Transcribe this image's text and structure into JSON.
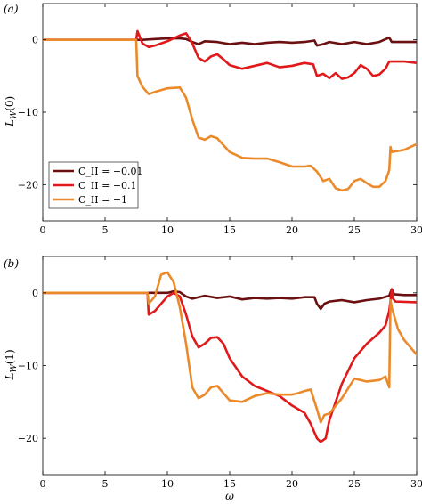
{
  "colors": {
    "c001": "#6b0f10",
    "c01": "#e0191b",
    "c1": "#eb8a2b"
  },
  "chart_data": [
    {
      "type": "line",
      "panel_label": "(a)",
      "xlabel": "",
      "ylabel": "L_W(0)",
      "ylabel_main": "L",
      "ylabel_sub": "W",
      "ylabel_arg": "(0)",
      "xlim": [
        0,
        30
      ],
      "ylim": [
        -25,
        5
      ],
      "xticks": [
        0,
        5,
        10,
        15,
        20,
        25,
        30
      ],
      "yticks": [
        0,
        -10,
        -20
      ],
      "xtick_labels": [
        "0",
        "5",
        "10",
        "15",
        "20",
        "25",
        "30"
      ],
      "ytick_labels": [
        "0",
        "−10",
        "−20"
      ],
      "legend_position": "bottom-left",
      "legend": [
        "C_II = −0.01",
        "C_II = −0.1",
        "C_II = −1"
      ],
      "series": [
        {
          "name": "C_II = −0.01",
          "color": "#6b0f10",
          "points": [
            [
              0,
              0
            ],
            [
              7.5,
              0
            ],
            [
              8,
              0
            ],
            [
              9,
              0.1
            ],
            [
              10,
              0.2
            ],
            [
              11,
              0.2
            ],
            [
              11.5,
              0.1
            ],
            [
              12,
              -0.3
            ],
            [
              12.5,
              -0.6
            ],
            [
              13,
              -0.2
            ],
            [
              14,
              -0.3
            ],
            [
              15,
              -0.6
            ],
            [
              16,
              -0.4
            ],
            [
              17,
              -0.6
            ],
            [
              18,
              -0.4
            ],
            [
              19,
              -0.3
            ],
            [
              20,
              -0.4
            ],
            [
              21,
              -0.3
            ],
            [
              21.8,
              -0.1
            ],
            [
              22,
              -0.8
            ],
            [
              22.5,
              -0.6
            ],
            [
              23,
              -0.3
            ],
            [
              24,
              -0.6
            ],
            [
              25,
              -0.3
            ],
            [
              26,
              -0.6
            ],
            [
              27,
              -0.3
            ],
            [
              27.8,
              0.3
            ],
            [
              28,
              -0.3
            ],
            [
              29,
              -0.3
            ],
            [
              30,
              -0.3
            ]
          ]
        },
        {
          "name": "C_II = −0.1",
          "color": "#e0191b",
          "points": [
            [
              0,
              0
            ],
            [
              7.5,
              0
            ],
            [
              7.6,
              1.2
            ],
            [
              8,
              -0.5
            ],
            [
              8.5,
              -1
            ],
            [
              9,
              -0.8
            ],
            [
              10,
              -0.2
            ],
            [
              11,
              0.6
            ],
            [
              11.5,
              0.9
            ],
            [
              12,
              -0.5
            ],
            [
              12.5,
              -2.5
            ],
            [
              13,
              -3
            ],
            [
              13.5,
              -2.3
            ],
            [
              14,
              -2
            ],
            [
              14.5,
              -2.7
            ],
            [
              15,
              -3.5
            ],
            [
              16,
              -4
            ],
            [
              17,
              -3.6
            ],
            [
              18,
              -3.2
            ],
            [
              19,
              -3.8
            ],
            [
              20,
              -3.6
            ],
            [
              21,
              -3.2
            ],
            [
              21.7,
              -3.4
            ],
            [
              22,
              -5
            ],
            [
              22.5,
              -4.7
            ],
            [
              23,
              -5.3
            ],
            [
              23.5,
              -4.6
            ],
            [
              24,
              -5.4
            ],
            [
              24.5,
              -5.2
            ],
            [
              25,
              -4.6
            ],
            [
              25.5,
              -3.5
            ],
            [
              26,
              -4
            ],
            [
              26.5,
              -5
            ],
            [
              27,
              -4.8
            ],
            [
              27.5,
              -4
            ],
            [
              27.8,
              -3
            ],
            [
              28,
              -3
            ],
            [
              29,
              -3
            ],
            [
              30,
              -3.2
            ]
          ]
        },
        {
          "name": "C_II = −1",
          "color": "#eb8a2b",
          "points": [
            [
              0,
              0
            ],
            [
              7.5,
              0
            ],
            [
              7.6,
              -5
            ],
            [
              8,
              -6.5
            ],
            [
              8.5,
              -7.5
            ],
            [
              9,
              -7.2
            ],
            [
              10,
              -6.7
            ],
            [
              11,
              -6.6
            ],
            [
              11.5,
              -8
            ],
            [
              12,
              -11
            ],
            [
              12.5,
              -13.5
            ],
            [
              13,
              -13.8
            ],
            [
              13.5,
              -13.3
            ],
            [
              14,
              -13.6
            ],
            [
              15,
              -15.5
            ],
            [
              16,
              -16.3
            ],
            [
              17,
              -16.4
            ],
            [
              18,
              -16.4
            ],
            [
              19,
              -16.9
            ],
            [
              20,
              -17.5
            ],
            [
              21,
              -17.5
            ],
            [
              21.5,
              -17.4
            ],
            [
              22,
              -18.2
            ],
            [
              22.5,
              -19.5
            ],
            [
              23,
              -19.2
            ],
            [
              23.5,
              -20.5
            ],
            [
              24,
              -20.8
            ],
            [
              24.5,
              -20.6
            ],
            [
              25,
              -19.5
            ],
            [
              25.5,
              -19.2
            ],
            [
              26,
              -19.8
            ],
            [
              26.5,
              -20.3
            ],
            [
              27,
              -20.3
            ],
            [
              27.5,
              -19.5
            ],
            [
              27.8,
              -18
            ],
            [
              27.9,
              -14.8
            ],
            [
              28,
              -15.5
            ],
            [
              29,
              -15.2
            ],
            [
              30,
              -14.4
            ]
          ]
        }
      ]
    },
    {
      "type": "line",
      "panel_label": "(b)",
      "xlabel": "ω",
      "ylabel": "L_W(1)",
      "ylabel_main": "L",
      "ylabel_sub": "W",
      "ylabel_arg": "(1)",
      "xlim": [
        0,
        30
      ],
      "ylim": [
        -25,
        5
      ],
      "xticks": [
        0,
        5,
        10,
        15,
        20,
        25,
        30
      ],
      "yticks": [
        0,
        -10,
        -20
      ],
      "xtick_labels": [
        "0",
        "5",
        "10",
        "15",
        "20",
        "25",
        "30"
      ],
      "ytick_labels": [
        "0",
        "−10",
        "−20"
      ],
      "series": [
        {
          "name": "C_II = −0.01",
          "color": "#6b0f10",
          "points": [
            [
              0,
              0
            ],
            [
              8.4,
              0
            ],
            [
              9,
              0
            ],
            [
              10,
              0
            ],
            [
              10.5,
              0.2
            ],
            [
              11,
              0.1
            ],
            [
              11.5,
              -0.5
            ],
            [
              12,
              -0.8
            ],
            [
              12.5,
              -0.6
            ],
            [
              13,
              -0.4
            ],
            [
              14,
              -0.7
            ],
            [
              15,
              -0.5
            ],
            [
              16,
              -0.9
            ],
            [
              17,
              -0.7
            ],
            [
              18,
              -0.8
            ],
            [
              19,
              -0.7
            ],
            [
              20,
              -0.8
            ],
            [
              21,
              -0.6
            ],
            [
              21.8,
              -0.6
            ],
            [
              22,
              -1.5
            ],
            [
              22.3,
              -2.2
            ],
            [
              22.6,
              -1.5
            ],
            [
              23,
              -1.2
            ],
            [
              24,
              -1
            ],
            [
              25,
              -1.3
            ],
            [
              26,
              -1
            ],
            [
              27,
              -0.8
            ],
            [
              27.8,
              -0.4
            ],
            [
              28,
              0.5
            ],
            [
              28.2,
              -0.2
            ],
            [
              29,
              -0.3
            ],
            [
              30,
              -0.3
            ]
          ]
        },
        {
          "name": "C_II = −0.1",
          "color": "#e0191b",
          "points": [
            [
              0,
              0
            ],
            [
              8.4,
              0
            ],
            [
              8.5,
              -3
            ],
            [
              9,
              -2.5
            ],
            [
              9.5,
              -1.5
            ],
            [
              10,
              -0.5
            ],
            [
              10.5,
              0
            ],
            [
              11,
              -0.5
            ],
            [
              11.5,
              -3
            ],
            [
              12,
              -6
            ],
            [
              12.5,
              -7.5
            ],
            [
              13,
              -7
            ],
            [
              13.5,
              -6.2
            ],
            [
              14,
              -6.1
            ],
            [
              14.5,
              -7
            ],
            [
              15,
              -9
            ],
            [
              16,
              -11.5
            ],
            [
              17,
              -12.8
            ],
            [
              18,
              -13.5
            ],
            [
              19,
              -14.2
            ],
            [
              20,
              -15.5
            ],
            [
              21,
              -16.5
            ],
            [
              21.5,
              -18
            ],
            [
              22,
              -20
            ],
            [
              22.3,
              -20.5
            ],
            [
              22.7,
              -20
            ],
            [
              23,
              -17.5
            ],
            [
              23.5,
              -15
            ],
            [
              24,
              -12.5
            ],
            [
              25,
              -9
            ],
            [
              26,
              -7
            ],
            [
              27,
              -5.5
            ],
            [
              27.5,
              -4.5
            ],
            [
              27.8,
              -2.5
            ],
            [
              28,
              0.5
            ],
            [
              28.1,
              -0.8
            ],
            [
              28.3,
              -1.2
            ],
            [
              30,
              -1.3
            ]
          ]
        },
        {
          "name": "C_II = −1",
          "color": "#eb8a2b",
          "points": [
            [
              0,
              0
            ],
            [
              8.4,
              0
            ],
            [
              8.5,
              -1.5
            ],
            [
              9,
              -0.5
            ],
            [
              9.5,
              2.5
            ],
            [
              10,
              2.8
            ],
            [
              10.5,
              1.5
            ],
            [
              11,
              -2
            ],
            [
              11.5,
              -7
            ],
            [
              12,
              -13
            ],
            [
              12.5,
              -14.5
            ],
            [
              13,
              -14
            ],
            [
              13.5,
              -13
            ],
            [
              14,
              -12.8
            ],
            [
              14.5,
              -13.8
            ],
            [
              15,
              -14.8
            ],
            [
              16,
              -15
            ],
            [
              17,
              -14.2
            ],
            [
              18,
              -13.8
            ],
            [
              19,
              -14
            ],
            [
              20,
              -14
            ],
            [
              20.5,
              -13.8
            ],
            [
              21,
              -13.5
            ],
            [
              21.5,
              -13.3
            ],
            [
              22,
              -16
            ],
            [
              22.3,
              -17.8
            ],
            [
              22.6,
              -16.8
            ],
            [
              23,
              -16.6
            ],
            [
              24,
              -14.5
            ],
            [
              25,
              -11.8
            ],
            [
              26,
              -12.2
            ],
            [
              27,
              -12
            ],
            [
              27.5,
              -11.5
            ],
            [
              27.8,
              -13
            ],
            [
              27.9,
              -1
            ],
            [
              28,
              -2
            ],
            [
              28.5,
              -5
            ],
            [
              29,
              -6.5
            ],
            [
              30,
              -8.5
            ]
          ]
        }
      ]
    }
  ]
}
